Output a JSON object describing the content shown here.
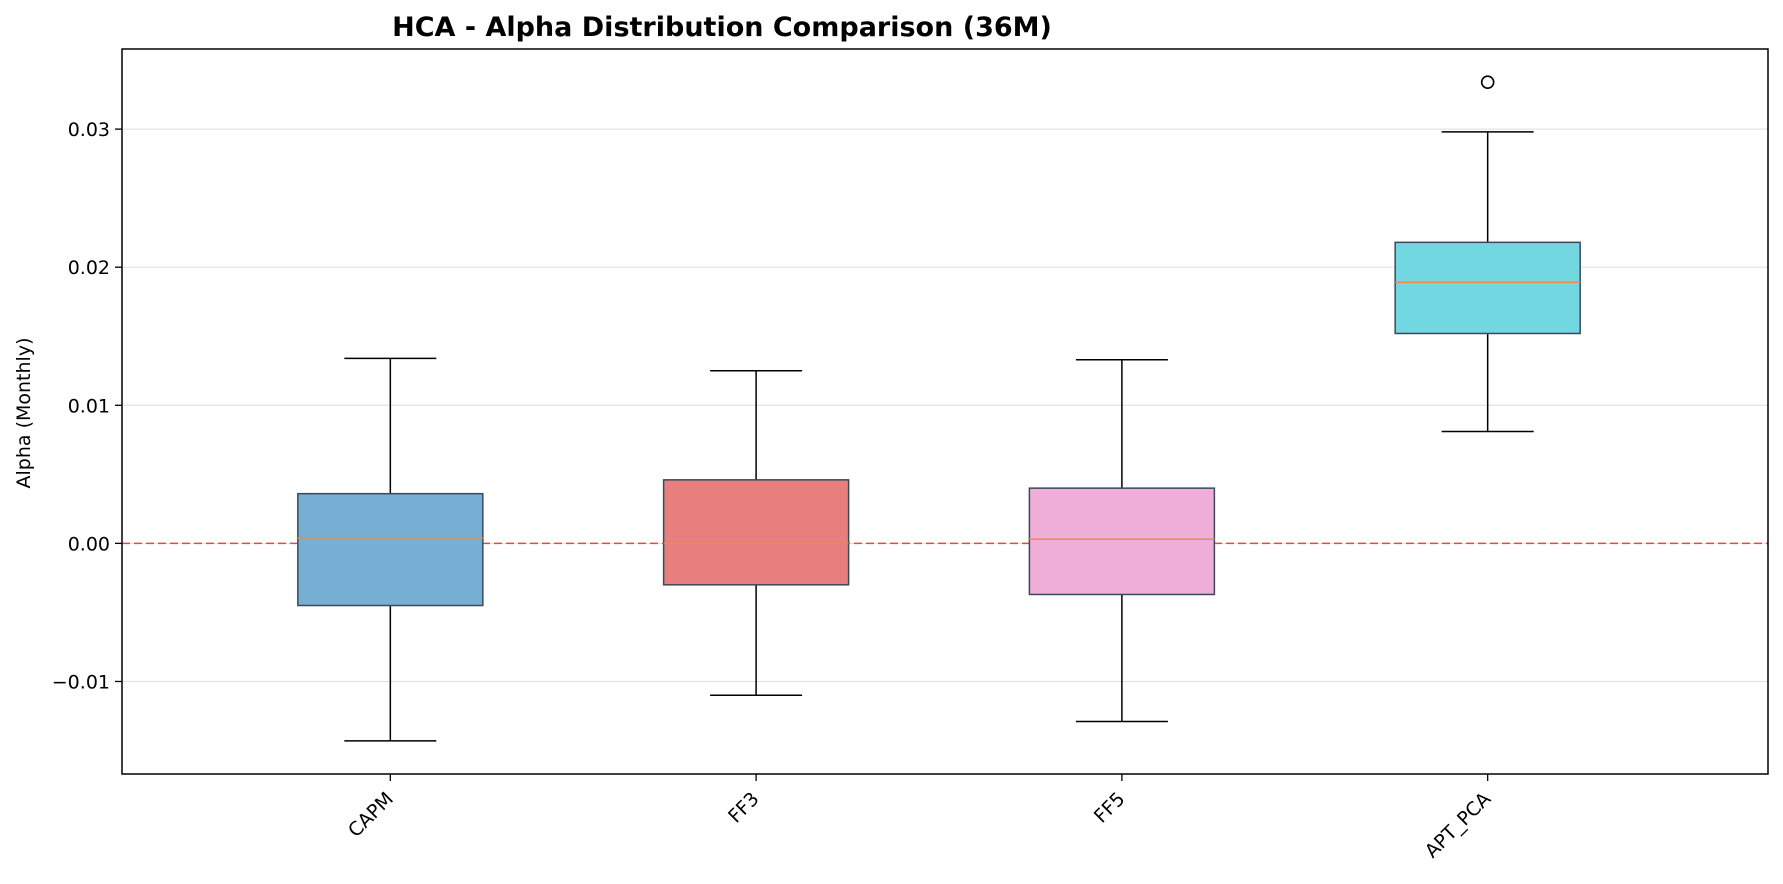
{
  "chart_data": {
    "type": "boxplot",
    "title": "HCA - Alpha Distribution Comparison (36M)",
    "xlabel": "",
    "ylabel": "Alpha (Monthly)",
    "ylim": [
      -0.0167,
      0.0358
    ],
    "yticks": [
      -0.01,
      0.0,
      0.01,
      0.02,
      0.03
    ],
    "ytick_labels": [
      "−0.01",
      "0.00",
      "0.01",
      "0.02",
      "0.03"
    ],
    "grid": "horizontal",
    "reference_line": {
      "y": 0.0,
      "style": "dashed",
      "color": "#e8474a"
    },
    "median_color": "#f08a3c",
    "categories": [
      "CAPM",
      "FF3",
      "FF5",
      "APT_PCA"
    ],
    "boxes": [
      {
        "name": "CAPM",
        "whisker_low": -0.0143,
        "q1": -0.0045,
        "median": 0.0004,
        "q3": 0.0036,
        "whisker_high": 0.0134,
        "outliers": [],
        "color": "#76aed4"
      },
      {
        "name": "FF3",
        "whisker_low": -0.011,
        "q1": -0.003,
        "median": 0.0,
        "q3": 0.0046,
        "whisker_high": 0.0125,
        "outliers": [],
        "color": "#e77f7e"
      },
      {
        "name": "FF5",
        "whisker_low": -0.0129,
        "q1": -0.0037,
        "median": 0.0003,
        "q3": 0.004,
        "whisker_high": 0.0133,
        "outliers": [],
        "color": "#efaed8"
      },
      {
        "name": "APT_PCA",
        "whisker_low": 0.0081,
        "q1": 0.0152,
        "median": 0.0189,
        "q3": 0.0218,
        "whisker_high": 0.0298,
        "outliers": [
          0.0334
        ],
        "color": "#72d7e1"
      }
    ]
  }
}
